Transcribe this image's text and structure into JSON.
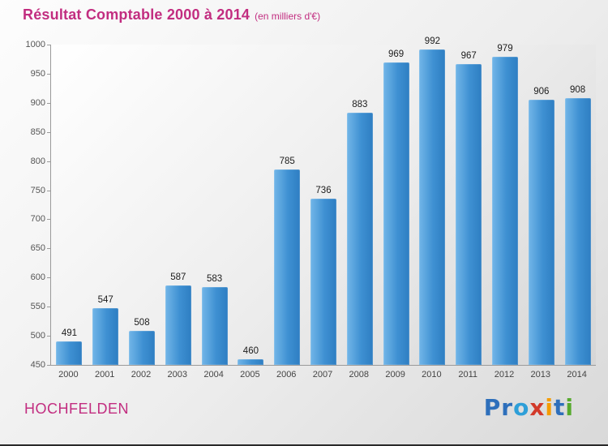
{
  "title": {
    "main": "Résultat Comptable 2000 à 2014",
    "sub": "(en milliers d'€)"
  },
  "footer": {
    "location": "HOCHFELDEN",
    "logo_letters": [
      {
        "ch": "P",
        "color": "#2e6fbb"
      },
      {
        "ch": "r",
        "color": "#2e6fbb"
      },
      {
        "ch": "o",
        "color": "#2e9fd8"
      },
      {
        "ch": "x",
        "color": "#d23a2a"
      },
      {
        "ch": "i",
        "color": "#f59b00"
      },
      {
        "ch": "t",
        "color": "#2e6fbb"
      },
      {
        "ch": "i",
        "color": "#57aa2e"
      }
    ]
  },
  "chart_data": {
    "type": "bar",
    "title": "Résultat Comptable 2000 à 2014",
    "subtitle": "(en milliers d'€)",
    "categories": [
      "2000",
      "2001",
      "2002",
      "2003",
      "2004",
      "2005",
      "2006",
      "2007",
      "2008",
      "2009",
      "2010",
      "2011",
      "2012",
      "2013",
      "2014"
    ],
    "values": [
      491,
      547,
      508,
      587,
      583,
      460,
      785,
      736,
      883,
      969,
      992,
      967,
      979,
      906,
      908
    ],
    "xlabel": "",
    "ylabel": "",
    "ylim": [
      450,
      1000
    ],
    "ytick_step": 50,
    "grid": false,
    "legend": "none",
    "bar_color_light": "#72b6e8",
    "bar_color_dark": "#2e7ec2",
    "title_color": "#c22d80"
  }
}
